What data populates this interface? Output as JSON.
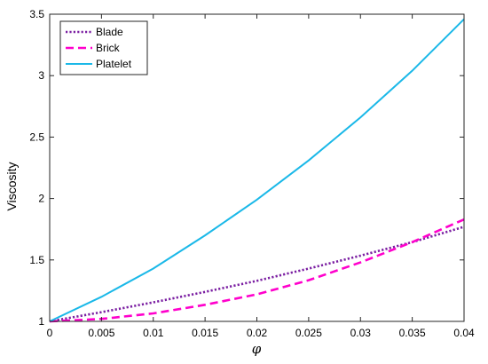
{
  "chart_data": {
    "type": "line",
    "title": "",
    "xlabel": "φ",
    "ylabel": "Viscosity",
    "xlim": [
      0,
      0.04
    ],
    "ylim": [
      1,
      3.5
    ],
    "x_ticks": [
      "0",
      "0.005",
      "0.01",
      "0.015",
      "0.02",
      "0.025",
      "0.03",
      "0.035",
      "0.04"
    ],
    "y_ticks": [
      "1",
      "1.5",
      "2",
      "2.5",
      "3",
      "3.5"
    ],
    "grid": false,
    "legend_position": "top-left",
    "x": [
      0,
      0.005,
      0.01,
      0.015,
      0.02,
      0.025,
      0.03,
      0.035,
      0.04
    ],
    "series": [
      {
        "name": "Blade",
        "style": "dotted",
        "color": "#7b1fa2",
        "values": [
          1.0,
          1.075,
          1.155,
          1.24,
          1.33,
          1.43,
          1.535,
          1.645,
          1.77
        ]
      },
      {
        "name": "Brick",
        "style": "dashed",
        "color": "#ff00cc",
        "values": [
          1.0,
          1.02,
          1.065,
          1.135,
          1.22,
          1.335,
          1.48,
          1.645,
          1.83
        ]
      },
      {
        "name": "Platelet",
        "style": "solid",
        "color": "#1ab8e8",
        "values": [
          1.0,
          1.2,
          1.43,
          1.7,
          1.99,
          2.31,
          2.66,
          3.04,
          3.46
        ]
      }
    ]
  }
}
